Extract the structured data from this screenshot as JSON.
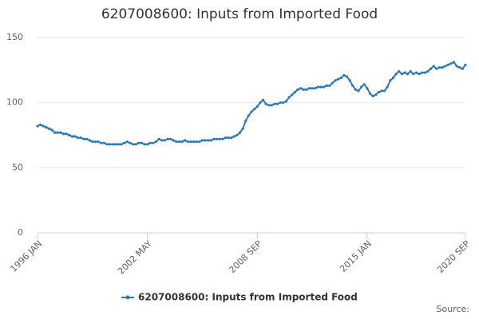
{
  "chart_data": {
    "type": "line",
    "title": "6207008600: Inputs from Imported Food",
    "categories": [
      "1996 JAN",
      null,
      null,
      null,
      null,
      null,
      null,
      null,
      null,
      null,
      null,
      null,
      null,
      null,
      null,
      null,
      null,
      null,
      null,
      null,
      null,
      null,
      null,
      null,
      null,
      null,
      null,
      null,
      null,
      null,
      null,
      null,
      null,
      null,
      null,
      null,
      null,
      null,
      "2002 MAY",
      null,
      null,
      null,
      null,
      null,
      null,
      null,
      null,
      null,
      null,
      null,
      null,
      null,
      null,
      null,
      null,
      null,
      null,
      null,
      null,
      null,
      null,
      null,
      null,
      null,
      null,
      null,
      null,
      null,
      null,
      null,
      null,
      null,
      null,
      null,
      null,
      null,
      "2008 SEP",
      null,
      null,
      null,
      null,
      null,
      null,
      null,
      null,
      null,
      null,
      null,
      null,
      null,
      null,
      null,
      null,
      null,
      null,
      null,
      null,
      null,
      null,
      null,
      null,
      null,
      null,
      null,
      null,
      null,
      null,
      null,
      null,
      null,
      null,
      null,
      null,
      null,
      "2015 JAN",
      null,
      null,
      null,
      null,
      null,
      null,
      null,
      null,
      null,
      null,
      null,
      null,
      null,
      null,
      null,
      null,
      null,
      null,
      null,
      null,
      null,
      null,
      null,
      null,
      null,
      null,
      null,
      null,
      null,
      null,
      null,
      null,
      null,
      "2020 SEP"
    ],
    "series": [
      {
        "name": "6207008600: Inputs from Imported Food",
        "color": "#2a7ab9",
        "values": [
          82,
          83,
          82,
          81,
          80,
          79,
          77,
          77,
          77,
          76,
          76,
          75,
          74,
          74,
          73,
          73,
          72,
          72,
          71,
          70,
          70,
          70,
          69,
          69,
          68,
          68,
          68,
          68,
          68,
          68,
          69,
          70,
          69,
          68,
          68,
          69,
          69,
          68,
          68,
          69,
          69,
          70,
          72,
          71,
          71,
          72,
          72,
          71,
          70,
          70,
          70,
          71,
          70,
          70,
          70,
          70,
          70,
          71,
          71,
          71,
          71,
          72,
          72,
          72,
          72,
          73,
          73,
          73,
          74,
          75,
          77,
          80,
          86,
          90,
          93,
          95,
          97,
          100,
          102,
          99,
          98,
          98,
          99,
          99,
          100,
          100,
          101,
          104,
          106,
          108,
          110,
          111,
          110,
          110,
          111,
          111,
          111,
          112,
          112,
          112,
          113,
          113,
          115,
          117,
          118,
          119,
          121,
          120,
          117,
          113,
          110,
          109,
          112,
          114,
          111,
          107,
          105,
          106,
          108,
          109,
          109,
          112,
          117,
          119,
          122,
          124,
          122,
          123,
          122,
          124,
          122,
          123,
          122,
          123,
          123,
          124,
          126,
          128,
          126,
          127,
          127,
          128,
          129,
          130,
          131,
          128,
          127,
          126,
          129
        ]
      }
    ],
    "ylim": [
      0,
      150
    ],
    "yticks": [
      0,
      50,
      100,
      150
    ],
    "grid": true,
    "source": "Source:"
  }
}
